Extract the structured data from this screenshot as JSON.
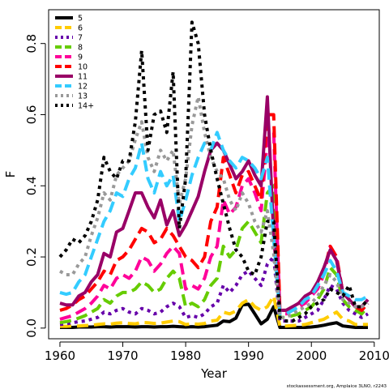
{
  "chart_data": {
    "type": "line",
    "xlabel": "Year",
    "ylabel": "F",
    "xlim": [
      1958.2,
      2010.8
    ],
    "ylim": [
      -0.03,
      0.895
    ],
    "xticks": [
      1960,
      1970,
      1980,
      1990,
      2000,
      2010
    ],
    "yticks": [
      0.0,
      0.2,
      0.4,
      0.6,
      0.8
    ],
    "ytick_labels": [
      "0.0",
      "0.2",
      "0.4",
      "0.6",
      "0.8"
    ],
    "legend_position": "top-left",
    "grid": false,
    "credit": "stockassessment.org, Amplaice 3LNO, r2243",
    "x": [
      1960,
      1961,
      1962,
      1963,
      1964,
      1965,
      1966,
      1967,
      1968,
      1969,
      1970,
      1971,
      1972,
      1973,
      1974,
      1975,
      1976,
      1977,
      1978,
      1979,
      1980,
      1981,
      1982,
      1983,
      1984,
      1985,
      1986,
      1987,
      1988,
      1989,
      1990,
      1991,
      1992,
      1993,
      1994,
      1995,
      1996,
      1997,
      1998,
      1999,
      2000,
      2001,
      2002,
      2003,
      2004,
      2005,
      2006,
      2007,
      2008,
      2009
    ],
    "series": [
      {
        "name": "5",
        "color": "#000000",
        "dash": "solid",
        "values": [
          0.002,
          0.002,
          0.002,
          0.003,
          0.003,
          0.003,
          0.004,
          0.004,
          0.003,
          0.004,
          0.004,
          0.004,
          0.003,
          0.004,
          0.004,
          0.003,
          0.004,
          0.004,
          0.005,
          0.004,
          0.003,
          0.004,
          0.003,
          0.004,
          0.006,
          0.008,
          0.02,
          0.018,
          0.028,
          0.065,
          0.067,
          0.04,
          0.012,
          0.025,
          0.06,
          0.002,
          0.002,
          0.002,
          0.002,
          0.002,
          0.003,
          0.005,
          0.008,
          0.012,
          0.015,
          0.006,
          0.004,
          0.002,
          0.002,
          0.002
        ]
      },
      {
        "name": "6",
        "color": "#ffcc00",
        "dash": "long",
        "values": [
          0.005,
          0.005,
          0.006,
          0.006,
          0.007,
          0.008,
          0.01,
          0.012,
          0.011,
          0.014,
          0.015,
          0.013,
          0.012,
          0.016,
          0.015,
          0.013,
          0.014,
          0.017,
          0.02,
          0.018,
          0.01,
          0.012,
          0.011,
          0.013,
          0.02,
          0.022,
          0.045,
          0.04,
          0.048,
          0.07,
          0.08,
          0.06,
          0.05,
          0.06,
          0.09,
          0.005,
          0.006,
          0.007,
          0.008,
          0.01,
          0.015,
          0.02,
          0.025,
          0.035,
          0.045,
          0.025,
          0.02,
          0.01,
          0.01,
          0.01
        ]
      },
      {
        "name": "7",
        "color": "#6600aa",
        "dash": "dot",
        "values": [
          0.01,
          0.012,
          0.015,
          0.018,
          0.02,
          0.025,
          0.03,
          0.045,
          0.04,
          0.05,
          0.055,
          0.045,
          0.04,
          0.055,
          0.05,
          0.04,
          0.045,
          0.06,
          0.07,
          0.06,
          0.03,
          0.035,
          0.03,
          0.04,
          0.06,
          0.07,
          0.12,
          0.1,
          0.12,
          0.15,
          0.16,
          0.14,
          0.12,
          0.18,
          0.2,
          0.02,
          0.02,
          0.02,
          0.02,
          0.03,
          0.04,
          0.05,
          0.08,
          0.12,
          0.11,
          0.07,
          0.05,
          0.04,
          0.03,
          0.04
        ]
      },
      {
        "name": "8",
        "color": "#66cc00",
        "dash": "long",
        "values": [
          0.015,
          0.018,
          0.022,
          0.028,
          0.035,
          0.045,
          0.055,
          0.08,
          0.07,
          0.09,
          0.1,
          0.1,
          0.11,
          0.13,
          0.12,
          0.1,
          0.11,
          0.14,
          0.16,
          0.14,
          0.06,
          0.07,
          0.06,
          0.08,
          0.12,
          0.14,
          0.23,
          0.2,
          0.22,
          0.28,
          0.3,
          0.27,
          0.24,
          0.38,
          0.4,
          0.03,
          0.03,
          0.035,
          0.04,
          0.05,
          0.06,
          0.08,
          0.11,
          0.17,
          0.15,
          0.08,
          0.06,
          0.05,
          0.04,
          0.06
        ]
      },
      {
        "name": "9",
        "color": "#ff0099",
        "dash": "long",
        "values": [
          0.025,
          0.03,
          0.035,
          0.045,
          0.055,
          0.07,
          0.09,
          0.12,
          0.11,
          0.14,
          0.15,
          0.14,
          0.16,
          0.2,
          0.19,
          0.16,
          0.18,
          0.21,
          0.23,
          0.21,
          0.11,
          0.12,
          0.11,
          0.14,
          0.2,
          0.23,
          0.36,
          0.32,
          0.34,
          0.4,
          0.42,
          0.38,
          0.33,
          0.53,
          0.55,
          0.04,
          0.04,
          0.05,
          0.06,
          0.07,
          0.09,
          0.11,
          0.15,
          0.23,
          0.2,
          0.1,
          0.08,
          0.06,
          0.05,
          0.07
        ]
      },
      {
        "name": "10",
        "color": "#ff0000",
        "dash": "long",
        "values": [
          0.05,
          0.055,
          0.065,
          0.08,
          0.09,
          0.11,
          0.13,
          0.16,
          0.15,
          0.19,
          0.2,
          0.22,
          0.25,
          0.28,
          0.27,
          0.24,
          0.25,
          0.28,
          0.26,
          0.23,
          0.2,
          0.19,
          0.17,
          0.2,
          0.3,
          0.34,
          0.48,
          0.43,
          0.38,
          0.43,
          0.44,
          0.4,
          0.36,
          0.6,
          0.6,
          0.05,
          0.05,
          0.06,
          0.07,
          0.08,
          0.1,
          0.12,
          0.16,
          0.23,
          0.2,
          0.1,
          0.08,
          0.06,
          0.05,
          0.07
        ]
      },
      {
        "name": "11",
        "color": "#990066",
        "dash": "solid",
        "values": [
          0.07,
          0.065,
          0.065,
          0.09,
          0.1,
          0.13,
          0.15,
          0.21,
          0.2,
          0.27,
          0.28,
          0.33,
          0.38,
          0.38,
          0.34,
          0.31,
          0.36,
          0.29,
          0.33,
          0.26,
          0.29,
          0.33,
          0.37,
          0.44,
          0.5,
          0.52,
          0.5,
          0.46,
          0.42,
          0.44,
          0.47,
          0.43,
          0.4,
          0.65,
          0.26,
          0.05,
          0.05,
          0.06,
          0.07,
          0.09,
          0.1,
          0.13,
          0.17,
          0.22,
          0.19,
          0.1,
          0.08,
          0.06,
          0.06,
          0.08
        ]
      },
      {
        "name": "12",
        "color": "#33ccff",
        "dash": "long",
        "values": [
          0.1,
          0.095,
          0.1,
          0.13,
          0.15,
          0.2,
          0.25,
          0.3,
          0.33,
          0.38,
          0.37,
          0.42,
          0.45,
          0.52,
          0.42,
          0.38,
          0.44,
          0.4,
          0.43,
          0.3,
          0.36,
          0.43,
          0.48,
          0.52,
          0.5,
          0.55,
          0.5,
          0.47,
          0.45,
          0.48,
          0.47,
          0.45,
          0.42,
          0.48,
          0.25,
          0.04,
          0.04,
          0.05,
          0.06,
          0.08,
          0.09,
          0.12,
          0.15,
          0.19,
          0.16,
          0.1,
          0.09,
          0.08,
          0.08,
          0.09
        ]
      },
      {
        "name": "13",
        "color": "#999999",
        "dash": "dot",
        "values": [
          0.16,
          0.15,
          0.15,
          0.18,
          0.2,
          0.26,
          0.31,
          0.38,
          0.36,
          0.43,
          0.45,
          0.47,
          0.53,
          0.58,
          0.48,
          0.44,
          0.5,
          0.47,
          0.5,
          0.35,
          0.42,
          0.57,
          0.65,
          0.55,
          0.48,
          0.44,
          0.42,
          0.36,
          0.33,
          0.38,
          0.35,
          0.3,
          0.27,
          0.33,
          0.21,
          0.03,
          0.03,
          0.04,
          0.05,
          0.06,
          0.07,
          0.09,
          0.12,
          0.15,
          0.13,
          0.08,
          0.07,
          0.06,
          0.06,
          0.07
        ]
      },
      {
        "name": "14+",
        "color": "#000000",
        "dash": "dot",
        "values": [
          0.2,
          0.22,
          0.25,
          0.24,
          0.26,
          0.3,
          0.36,
          0.48,
          0.44,
          0.42,
          0.47,
          0.47,
          0.58,
          0.78,
          0.5,
          0.6,
          0.61,
          0.55,
          0.72,
          0.28,
          0.42,
          0.86,
          0.8,
          0.6,
          0.5,
          0.42,
          0.35,
          0.28,
          0.22,
          0.2,
          0.16,
          0.15,
          0.2,
          0.3,
          0.3,
          0.03,
          0.02,
          0.02,
          0.03,
          0.04,
          0.06,
          0.07,
          0.08,
          0.11,
          0.1,
          0.09,
          0.12,
          0.06,
          0.06,
          0.08
        ]
      }
    ]
  }
}
